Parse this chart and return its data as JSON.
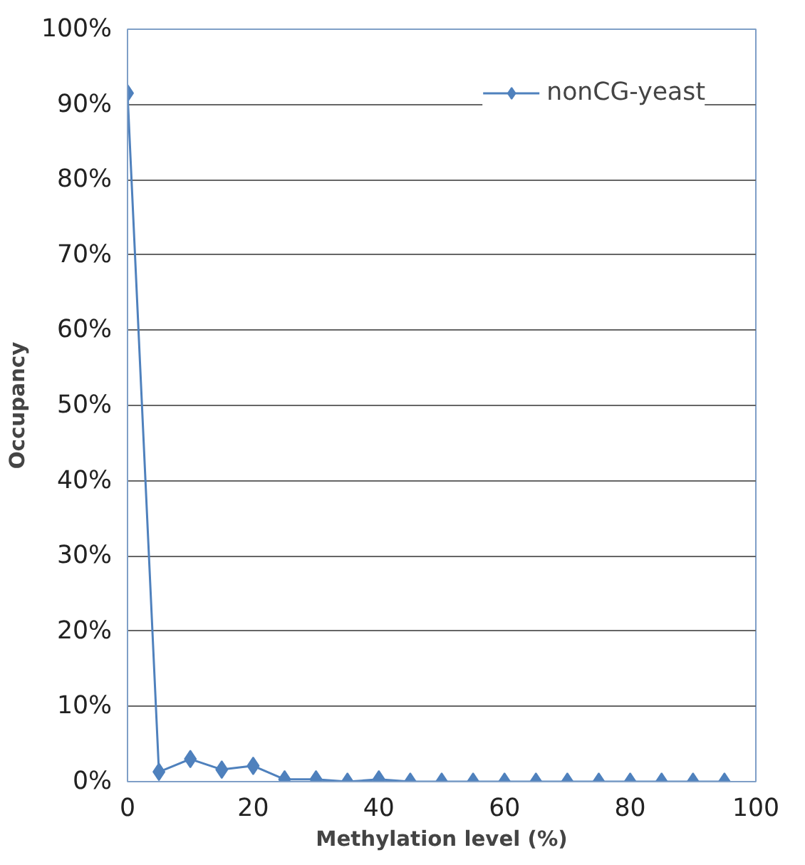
{
  "chart_data": {
    "type": "line",
    "xlabel": "Methylation level (%)",
    "ylabel": "Occupancy",
    "x": [
      0,
      5,
      10,
      15,
      20,
      25,
      30,
      35,
      40,
      45,
      50,
      55,
      60,
      65,
      70,
      75,
      80,
      85,
      90,
      95
    ],
    "series": [
      {
        "name": "nonCG-yeast",
        "color": "#4f81bd",
        "values": [
          91.5,
          1.3,
          3,
          1.6,
          2.1,
          0.3,
          0.3,
          0,
          0.3,
          0,
          0,
          0,
          0,
          0,
          0,
          0,
          0,
          0,
          0,
          0
        ]
      }
    ],
    "xlim": [
      0,
      100
    ],
    "xticks": [
      0,
      20,
      40,
      60,
      80,
      100
    ],
    "ylim": [
      0,
      100
    ],
    "yticks": [
      {
        "value": 0,
        "label": "0%"
      },
      {
        "value": 10,
        "label": "10%"
      },
      {
        "value": 20,
        "label": "20%"
      },
      {
        "value": 30,
        "label": "30%"
      },
      {
        "value": 40,
        "label": "40%"
      },
      {
        "value": 50,
        "label": "50%"
      },
      {
        "value": 60,
        "label": "60%"
      },
      {
        "value": 70,
        "label": "70%"
      },
      {
        "value": 80,
        "label": "80%"
      },
      {
        "value": 90,
        "label": "90%"
      },
      {
        "value": 100,
        "label": "100%"
      }
    ],
    "grid": "y",
    "legend": "top right",
    "marker": "diamond",
    "line_style": "solid"
  }
}
